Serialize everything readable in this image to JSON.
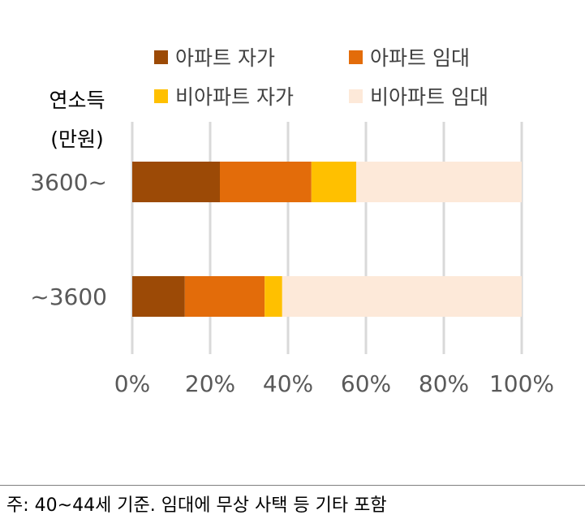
{
  "chart_data": {
    "type": "bar",
    "orientation": "horizontal",
    "stacked": "100%",
    "ylabel": [
      "연소득",
      "(만원)"
    ],
    "categories": [
      "3600~",
      "~3600"
    ],
    "series": [
      {
        "name": "아파트 자가",
        "color": "#9c4a06",
        "values": [
          22.5,
          13.5
        ]
      },
      {
        "name": "아파트 임대",
        "color": "#e36c0a",
        "values": [
          23.5,
          20.5
        ]
      },
      {
        "name": "비아파트 자가",
        "color": "#ffc000",
        "values": [
          11.5,
          4.5
        ]
      },
      {
        "name": "비아파트 임대",
        "color": "#fde9d9",
        "values": [
          42.5,
          61.5
        ]
      }
    ],
    "xlim": [
      0,
      100
    ],
    "xticks": [
      0,
      20,
      40,
      60,
      80,
      100
    ],
    "xtick_labels": [
      "0%",
      "20%",
      "40%",
      "60%",
      "80%",
      "100%"
    ],
    "grid": "vertical",
    "legend": "top"
  },
  "footnote": "주: 40~44세 기준. 임대에 무상 사택 등 기타 포함"
}
